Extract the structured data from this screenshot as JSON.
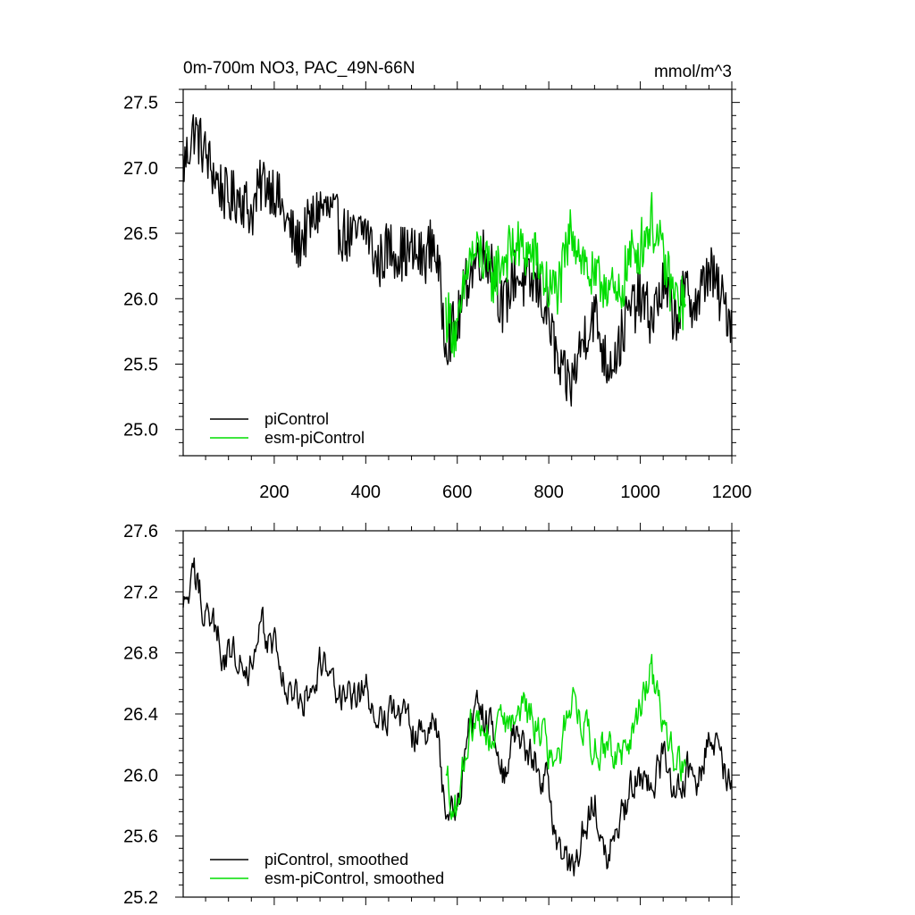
{
  "chart_data": [
    {
      "type": "line",
      "title": "0m-700m NO3, PAC_49N-66N",
      "units": "mmol/m^3",
      "xlim": [
        1,
        1200
      ],
      "ylim": [
        24.8,
        27.6
      ],
      "xticks": [
        200,
        400,
        600,
        800,
        1000,
        1200
      ],
      "xtick_labels": [
        "200",
        "400",
        "600",
        "800",
        "1000",
        "1200"
      ],
      "yticks": [
        25.0,
        25.5,
        26.0,
        26.5,
        27.0,
        27.5
      ],
      "ytick_labels": [
        "25.0",
        "25.5",
        "26.0",
        "26.5",
        "27.0",
        "27.5"
      ],
      "grid": false,
      "legend_position": "bottom-left",
      "series": [
        {
          "name": "piControl",
          "color": "#000000",
          "x": [
            1,
            25,
            50,
            75,
            100,
            125,
            150,
            175,
            200,
            225,
            250,
            275,
            300,
            325,
            350,
            375,
            400,
            425,
            450,
            475,
            500,
            525,
            550,
            575,
            600,
            625,
            650,
            675,
            700,
            725,
            750,
            775,
            800,
            825,
            850,
            875,
            900,
            925,
            950,
            975,
            1000,
            1025,
            1050,
            1075,
            1100,
            1125,
            1150,
            1175,
            1200
          ],
          "values": [
            27.0,
            27.3,
            27.1,
            26.9,
            26.75,
            26.8,
            26.65,
            26.9,
            26.85,
            26.6,
            26.4,
            26.55,
            26.7,
            26.65,
            26.5,
            26.45,
            26.55,
            26.25,
            26.4,
            26.35,
            26.35,
            26.3,
            26.45,
            25.7,
            25.8,
            26.2,
            26.35,
            26.3,
            25.9,
            26.2,
            26.1,
            26.1,
            25.85,
            25.4,
            25.35,
            25.7,
            25.9,
            25.5,
            25.6,
            25.9,
            26.0,
            25.85,
            26.1,
            25.85,
            26.05,
            25.95,
            26.25,
            26.0,
            25.85
          ]
        },
        {
          "name": "esm-piControl",
          "color": "#00dd00",
          "x": [
            575,
            600,
            625,
            650,
            675,
            700,
            725,
            750,
            775,
            800,
            825,
            850,
            875,
            900,
            925,
            950,
            975,
            1000,
            1025,
            1050,
            1075,
            1100
          ],
          "values": [
            25.9,
            25.7,
            26.3,
            26.35,
            26.15,
            26.3,
            26.4,
            26.35,
            26.3,
            26.05,
            26.1,
            26.55,
            26.3,
            26.1,
            26.15,
            25.95,
            26.3,
            26.4,
            26.6,
            26.3,
            26.0,
            25.95
          ]
        }
      ]
    },
    {
      "type": "line",
      "xlim": [
        1,
        1200
      ],
      "ylim": [
        25.2,
        27.6
      ],
      "xticks": [
        200,
        400,
        600,
        800,
        1000,
        1200
      ],
      "yticks": [
        25.2,
        25.6,
        26.0,
        26.4,
        26.8,
        27.2,
        27.6
      ],
      "ytick_labels": [
        "25.2",
        "25.6",
        "26.0",
        "26.4",
        "26.8",
        "27.2",
        "27.6"
      ],
      "grid": false,
      "legend_position": "bottom-left",
      "series": [
        {
          "name": "piControl, smoothed",
          "color": "#000000",
          "x": [
            1,
            25,
            50,
            75,
            100,
            125,
            150,
            175,
            200,
            225,
            250,
            275,
            300,
            325,
            350,
            375,
            400,
            425,
            450,
            475,
            500,
            525,
            550,
            575,
            600,
            625,
            650,
            675,
            700,
            725,
            750,
            775,
            800,
            825,
            850,
            875,
            900,
            925,
            950,
            975,
            1000,
            1025,
            1050,
            1075,
            1100,
            1125,
            1150,
            1175,
            1200
          ],
          "values": [
            27.05,
            27.28,
            27.1,
            26.9,
            26.75,
            26.85,
            26.7,
            26.95,
            26.85,
            26.6,
            26.45,
            26.55,
            26.75,
            26.65,
            26.5,
            26.45,
            26.6,
            26.3,
            26.45,
            26.4,
            26.3,
            26.2,
            26.45,
            25.75,
            25.8,
            26.25,
            26.4,
            26.35,
            26.0,
            26.25,
            26.15,
            26.1,
            25.9,
            25.45,
            25.35,
            25.65,
            25.9,
            25.5,
            25.6,
            25.85,
            26.0,
            25.9,
            26.1,
            25.9,
            26.05,
            25.95,
            26.3,
            26.1,
            25.85
          ]
        },
        {
          "name": "esm-piControl, smoothed",
          "color": "#00dd00",
          "x": [
            575,
            600,
            625,
            650,
            675,
            700,
            725,
            750,
            775,
            800,
            825,
            850,
            875,
            900,
            925,
            950,
            975,
            1000,
            1025,
            1050,
            1075,
            1100
          ],
          "values": [
            25.95,
            25.8,
            26.3,
            26.4,
            26.2,
            26.35,
            26.4,
            26.4,
            26.35,
            26.1,
            26.15,
            26.55,
            26.35,
            26.15,
            26.2,
            26.05,
            26.25,
            26.45,
            26.65,
            26.35,
            26.05,
            26.0
          ]
        }
      ]
    }
  ]
}
